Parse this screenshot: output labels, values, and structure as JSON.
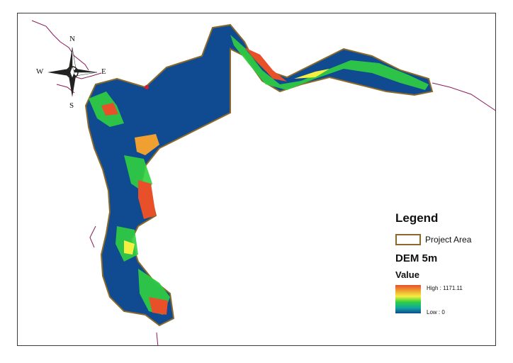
{
  "map": {
    "legend": {
      "title": "Legend",
      "project_area_label": "Project Area",
      "dem_title": "DEM 5m",
      "value_title": "Value",
      "high_label": "High : 1171.11",
      "low_label": "Low : 0",
      "project_area_color": "#8a6a2a",
      "ramp_colors": [
        "#e8502a",
        "#f0a030",
        "#f5f040",
        "#30d040",
        "#10a8a0",
        "#104a90"
      ]
    },
    "compass": {
      "north": "N",
      "south": "S",
      "east": "E",
      "west": "W"
    },
    "dem_range": {
      "high": 1171.11,
      "low": 0
    },
    "colors": {
      "lowland": "#104a90",
      "coastline": "#8b1a5a",
      "boundary": "#8a6a2a"
    }
  }
}
